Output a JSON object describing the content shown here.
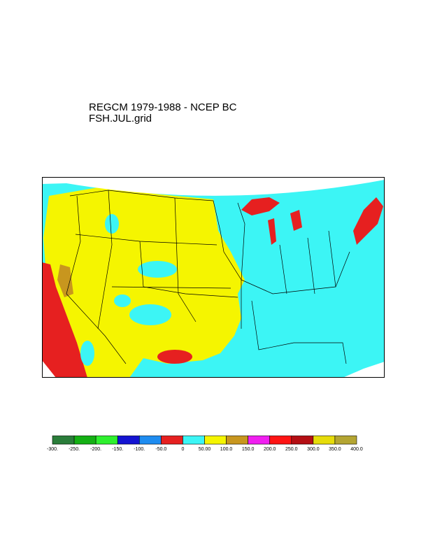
{
  "title": "REGCM 1979-1988 - NCEP BC",
  "subtitle": "FSH.JUL.grid",
  "colorbar": {
    "colors": [
      "#2a7d3a",
      "#14b014",
      "#2ef02e",
      "#1414d2",
      "#1e8cf0",
      "#e62020",
      "#3cf5f5",
      "#f5f500",
      "#c8961e",
      "#f01ef0",
      "#ff1414",
      "#b40f14",
      "#e6dc0a",
      "#b4a532"
    ],
    "labels": [
      "-300.",
      "-250.",
      "-200.",
      "-150.",
      "-100.",
      "-50.0",
      "0",
      "50.00",
      "100.0",
      "150.0",
      "200.0",
      "250.0",
      "300.0",
      "350.0",
      "400.0"
    ]
  }
}
